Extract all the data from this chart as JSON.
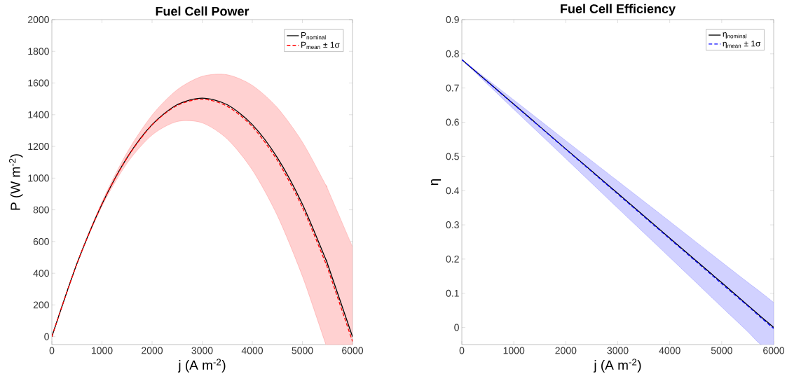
{
  "chart_data": [
    {
      "type": "line",
      "title": "Fuel Cell Power",
      "xlabel": "j (A m$^{-2}$)",
      "ylabel": "P (W m$^{-2}$)",
      "x": [
        0,
        500,
        1000,
        1500,
        2000,
        2500,
        3000,
        3500,
        4000,
        4500,
        5000,
        5470,
        5500,
        6000
      ],
      "xlim": [
        0,
        6000
      ],
      "xticks": [
        0,
        1000,
        2000,
        3000,
        4000,
        5000,
        6000
      ],
      "ylim": [
        -50,
        2000
      ],
      "yticks": [
        0,
        200,
        400,
        600,
        800,
        1000,
        1200,
        1400,
        1600,
        1800,
        2000
      ],
      "legend": "top right",
      "series": [
        {
          "name": "P$_{nominal}$",
          "color": "#000000",
          "line_style": "solid",
          "values": [
            0,
            460,
            836,
            1129,
            1338,
            1463,
            1505,
            1463,
            1338,
            1129,
            836,
            485,
            460,
            0
          ]
        },
        {
          "name": "P$_{mean}$ ± 1σ",
          "color": "#ff0000",
          "line_style": "dashed",
          "values": [
            0,
            460,
            836,
            1127,
            1335,
            1458,
            1498,
            1453,
            1325,
            1112,
            815,
            460,
            435,
            -30
          ],
          "lower": [
            0,
            458,
            823,
            1094,
            1272,
            1357,
            1349,
            1247,
            1052,
            764,
            382,
            -50,
            -50,
            -50
          ],
          "upper": [
            0,
            463,
            850,
            1161,
            1397,
            1557,
            1642,
            1652,
            1585,
            1444,
            1227,
            954,
            934,
            566
          ]
        }
      ]
    },
    {
      "type": "line",
      "title": "Fuel Cell Efficiency",
      "xlabel": "j (A m$^{-2}$)",
      "ylabel": "η",
      "x": [
        0,
        1000,
        2000,
        3000,
        4000,
        5000,
        5500,
        5760,
        6000
      ],
      "xlim": [
        0,
        6000
      ],
      "xticks": [
        0,
        1000,
        2000,
        3000,
        4000,
        5000,
        6000
      ],
      "ylim": [
        -0.05,
        0.9
      ],
      "yticks": [
        0,
        0.1,
        0.2,
        0.3,
        0.4,
        0.5,
        0.6,
        0.7,
        0.8,
        0.9
      ],
      "legend": "top right",
      "series": [
        {
          "name": "η$_{nominal}$",
          "color": "#000000",
          "line_style": "solid",
          "values": [
            0.783,
            0.653,
            0.522,
            0.392,
            0.261,
            0.131,
            0.065,
            0.031,
            0
          ]
        },
        {
          "name": "η$_{mean}$ ± 1σ",
          "color": "#0000ff",
          "line_style": "dashed",
          "values": [
            0.783,
            0.652,
            0.521,
            0.39,
            0.259,
            0.128,
            0.063,
            0.028,
            -0.003
          ],
          "lower": [
            0.783,
            0.638,
            0.494,
            0.349,
            0.205,
            0.06,
            -0.012,
            -0.05,
            -0.05
          ],
          "upper": [
            0.783,
            0.665,
            0.546,
            0.428,
            0.31,
            0.191,
            0.132,
            0.102,
            0.073
          ]
        }
      ]
    }
  ]
}
